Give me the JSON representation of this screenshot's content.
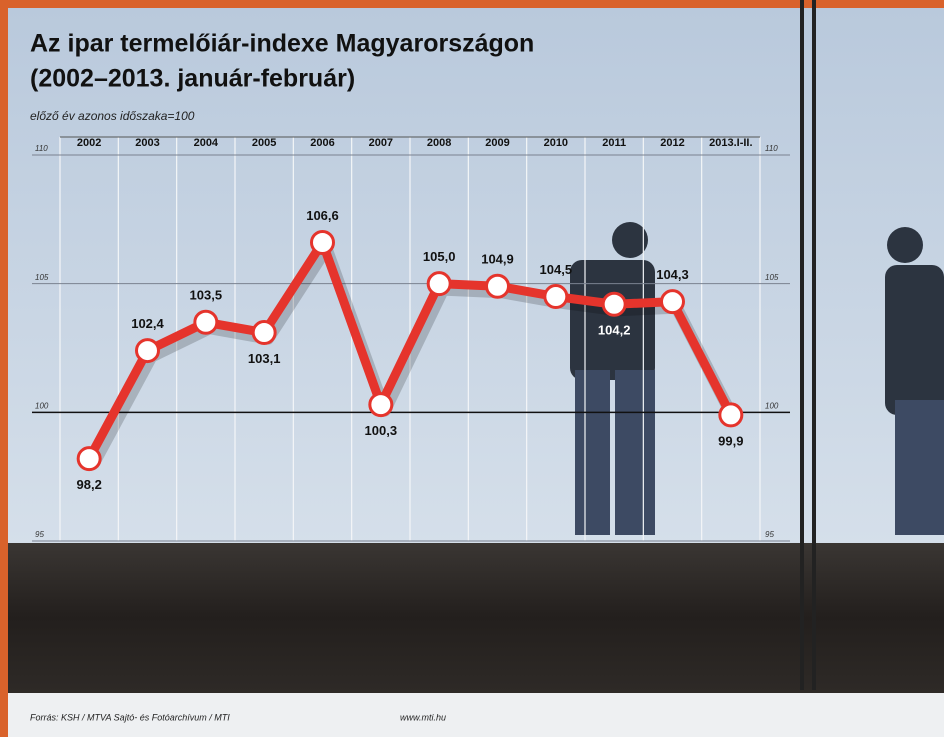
{
  "chart_data": {
    "type": "line",
    "title": "Az ipar termelőiár-indexe Magyarországon",
    "title_line2": "(2002–2013. január-február)",
    "subtitle": "előző év azonos időszaka=100",
    "categories": [
      "2002",
      "2003",
      "2004",
      "2005",
      "2006",
      "2007",
      "2008",
      "2009",
      "2010",
      "2011",
      "2012",
      "2013.I-II."
    ],
    "values": [
      98.2,
      102.4,
      103.5,
      103.1,
      106.6,
      100.3,
      105.0,
      104.9,
      104.5,
      104.2,
      104.3,
      99.9
    ],
    "value_labels": [
      "98,2",
      "102,4",
      "103,5",
      "103,1",
      "106,6",
      "100,3",
      "105,0",
      "104,9",
      "104,5",
      "104,2",
      "104,3",
      "99,9"
    ],
    "color": "#e5342c",
    "ylim": [
      95,
      110
    ],
    "yticks": [
      95,
      100,
      105,
      110
    ],
    "grid": true,
    "source": "Forrás: KSH / MTVA Sajtó- és Fotóarchívum / MTI",
    "website": "www.mti.hu"
  }
}
